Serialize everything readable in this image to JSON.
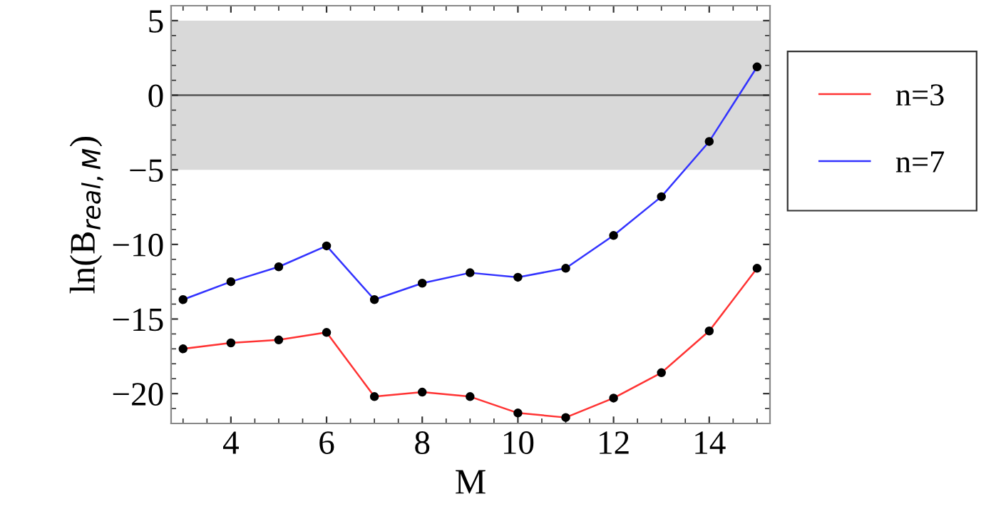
{
  "chart_data": {
    "type": "line",
    "xlabel": "M",
    "ylabel": "ln(B$_{real,M}$)",
    "x": [
      3,
      4,
      5,
      6,
      7,
      8,
      9,
      10,
      11,
      12,
      13,
      14,
      15
    ],
    "series": [
      {
        "name": "n=3",
        "color": "#ff3333",
        "values": [
          -17.0,
          -16.6,
          -16.4,
          -15.9,
          -20.2,
          -19.9,
          -20.2,
          -21.3,
          -21.6,
          -20.3,
          -18.6,
          -15.8,
          -11.6
        ]
      },
      {
        "name": "n=7",
        "color": "#3333ff",
        "values": [
          -13.7,
          -12.5,
          -11.5,
          -10.1,
          -13.7,
          -12.6,
          -11.9,
          -12.2,
          -11.6,
          -9.4,
          -6.8,
          -3.1,
          1.9
        ]
      }
    ],
    "xlim": [
      2.75,
      15.27
    ],
    "ylim": [
      -22,
      6
    ],
    "xticks": [
      4,
      6,
      8,
      10,
      12,
      14
    ],
    "yticks": [
      5,
      0,
      -5,
      -10,
      -15,
      -20
    ],
    "bands": [
      {
        "axis": "y",
        "from": -5,
        "to": 5,
        "color": "#d9d9d9"
      }
    ],
    "ref_lines": [
      {
        "axis": "y",
        "value": 0,
        "color": "#555555"
      }
    ],
    "marker": "circle",
    "line_style": "solid",
    "grid": false,
    "legend": "right"
  }
}
